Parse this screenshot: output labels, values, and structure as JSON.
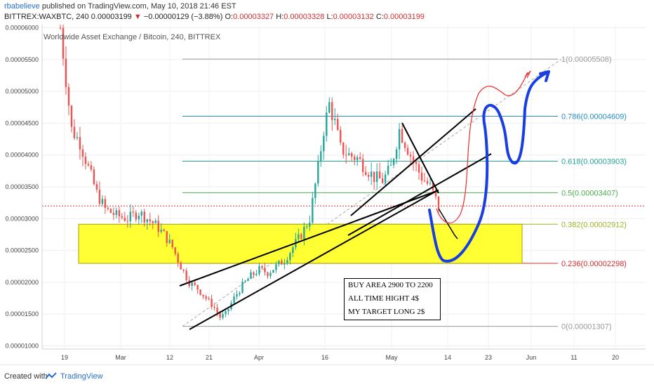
{
  "header": {
    "user": "rbabelieve",
    "published": " published on TradingView.com, May 10, 2018 21:46 EST",
    "symbol": "BITTREX:WAXBTC, 240",
    "last": "0.00003199",
    "change": "−0.00000129 (−3.88%)",
    "o_label": "O:",
    "o_value": "0.00003327",
    "h_label": "H:",
    "h_value": "0.00003328",
    "l_label": "L:",
    "l_value": "0.00003132",
    "c_label": "C:",
    "c_value": "0.00003199"
  },
  "chart_data": {
    "type": "candlestick",
    "title": "Worldwide Asset Exchange / Bitcoin, 240, BITTREX",
    "y_ticks": [
      "0.00006000",
      "0.00005500",
      "0.00005000",
      "0.00004500",
      "0.00004000",
      "0.00003500",
      "0.00003000",
      "0.00002500",
      "0.00002000",
      "0.00001500",
      "0.00001000"
    ],
    "y_tick_values": [
      6e-05,
      5.5e-05,
      5e-05,
      4.5e-05,
      4e-05,
      3.5e-05,
      3e-05,
      2.5e-05,
      2e-05,
      1.5e-05,
      1e-05
    ],
    "x_ticks": [
      "19",
      "Mar",
      "12",
      "21",
      "Apr",
      "16",
      "May",
      "14",
      "23",
      "Jun",
      "11",
      "20"
    ],
    "ylim": [
      9.5e-06,
      6.05e-05
    ],
    "price_series": [
      [
        0,
        6e-05
      ],
      [
        2,
        5.2e-05
      ],
      [
        4,
        4.4e-05
      ],
      [
        7,
        4.2e-05
      ],
      [
        10,
        3.8e-05
      ],
      [
        13,
        3.4e-05
      ],
      [
        16,
        3.15e-05
      ],
      [
        20,
        3.05e-05
      ],
      [
        24,
        3e-05
      ],
      [
        28,
        3.1e-05
      ],
      [
        31,
        3e-05
      ],
      [
        34,
        2.9e-05
      ],
      [
        37,
        2.75e-05
      ],
      [
        40,
        2.55e-05
      ],
      [
        43,
        2.25e-05
      ],
      [
        46,
        2e-05
      ],
      [
        49,
        1.9e-05
      ],
      [
        52,
        1.75e-05
      ],
      [
        55,
        1.6e-05
      ],
      [
        57,
        1.45e-05
      ],
      [
        59,
        1.5e-05
      ],
      [
        62,
        1.75e-05
      ],
      [
        65,
        1.95e-05
      ],
      [
        68,
        2.1e-05
      ],
      [
        71,
        2.2e-05
      ],
      [
        74,
        2.15e-05
      ],
      [
        77,
        2.25e-05
      ],
      [
        80,
        2.35e-05
      ],
      [
        83,
        2.55e-05
      ],
      [
        86,
        2.75e-05
      ],
      [
        89,
        3e-05
      ],
      [
        92,
        3.8e-05
      ],
      [
        94,
        4.4e-05
      ],
      [
        96,
        4.8e-05
      ],
      [
        98,
        4.5e-05
      ],
      [
        100,
        4.1e-05
      ],
      [
        103,
        4e-05
      ],
      [
        106,
        3.95e-05
      ],
      [
        109,
        3.8e-05
      ],
      [
        112,
        3.65e-05
      ],
      [
        115,
        3.6e-05
      ],
      [
        118,
        3.8e-05
      ],
      [
        121,
        4.4e-05
      ],
      [
        123,
        4.2e-05
      ],
      [
        126,
        3.9e-05
      ],
      [
        129,
        3.65e-05
      ],
      [
        132,
        3.5e-05
      ],
      [
        135,
        3.2e-05
      ]
    ],
    "buy_zone": {
      "top": 2.912e-05,
      "bottom": 2.298e-05
    },
    "current_price_line": 3.199e-05,
    "fibonacci": [
      {
        "level": "1",
        "value": 5.508e-05,
        "label": "1(0.00005508)",
        "color": "#9a9a9a"
      },
      {
        "level": "0.786",
        "value": 4.609e-05,
        "label": "0.786(0.00004609)",
        "color": "#2a8fc0"
      },
      {
        "level": "0.618",
        "value": 3.903e-05,
        "label": "0.618(0.00003903)",
        "color": "#26a69a"
      },
      {
        "level": "0.5",
        "value": 3.407e-05,
        "label": "0.5(0.00003407)",
        "color": "#4caf50"
      },
      {
        "level": "0.382",
        "value": 2.912e-05,
        "label": "0.382(0.00002912)",
        "color": "#9bb52a"
      },
      {
        "level": "0.236",
        "value": 2.298e-05,
        "label": "0.236(0.00002298)",
        "color": "#d32f2f"
      },
      {
        "level": "0",
        "value": 1.307e-05,
        "label": "0(0.00001307)",
        "color": "#9a9a9a"
      }
    ],
    "note_lines": [
      "BUY AREA 2900 TO 2200",
      "ALL TIME HIGHT 4$",
      "MY TARGET LONG 2$"
    ],
    "colors": {
      "up": "#26a69a",
      "down": "#ef5350",
      "buy_zone": "#ffff33",
      "blue_path": "#1a3fe0",
      "red_path": "#ee2b2b"
    }
  },
  "footer": {
    "created": "Created with",
    "brand": "TradingView"
  }
}
